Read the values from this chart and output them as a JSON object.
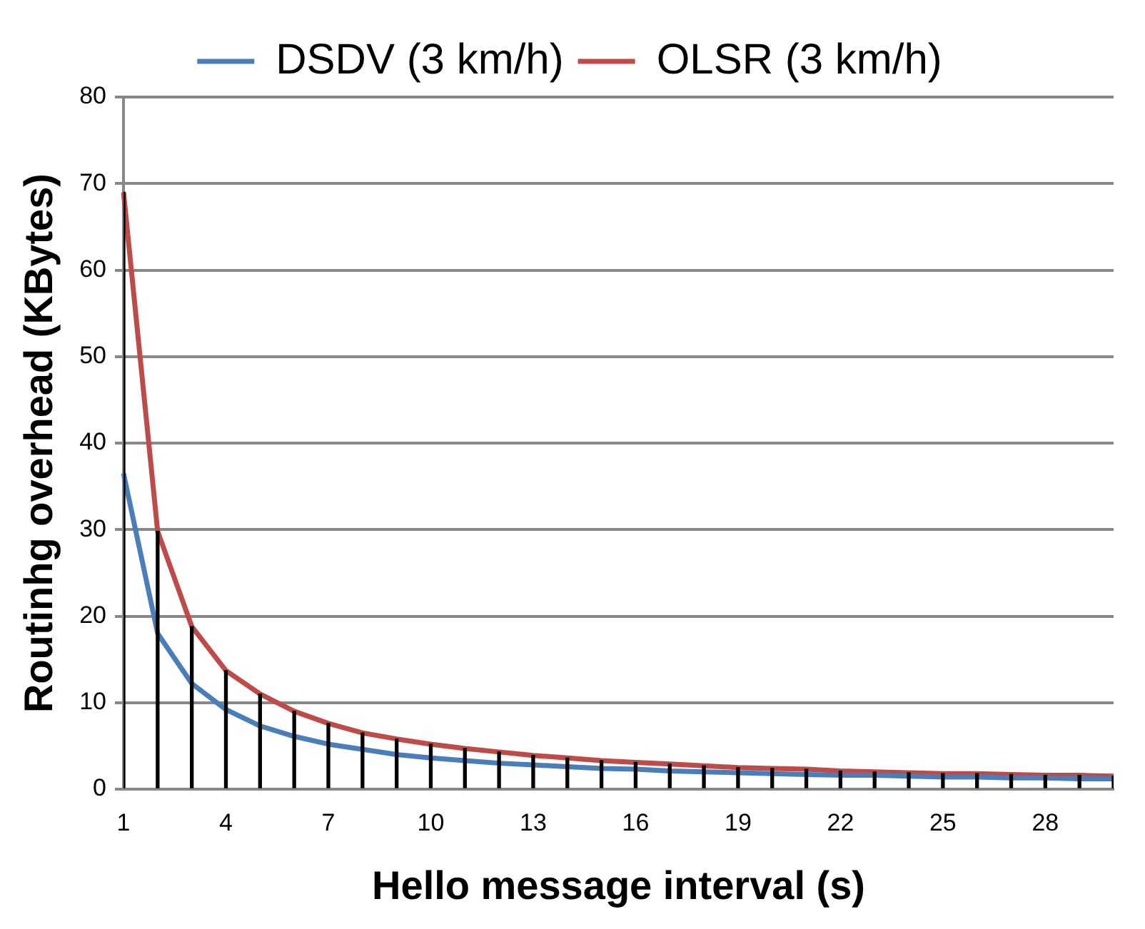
{
  "chart_data": {
    "type": "line",
    "xlabel": "Hello message interval (s)",
    "ylabel": "Routinhg overhead (KBytes)",
    "categories": [
      "1",
      null,
      null,
      "4",
      null,
      null,
      "7",
      null,
      null,
      "10",
      null,
      null,
      "13",
      null,
      null,
      "16",
      null,
      null,
      "19",
      null,
      null,
      "22",
      null,
      null,
      "25",
      null,
      null,
      "28",
      null,
      null
    ],
    "series": [
      {
        "name": "DSDV (3 km/h)",
        "color": "#4a7ebb",
        "values": [
          36.5,
          18,
          12.2,
          9.2,
          7.3,
          6.1,
          5.2,
          4.6,
          4.0,
          3.6,
          3.3,
          3.0,
          2.8,
          2.6,
          2.4,
          2.3,
          2.1,
          2.0,
          1.9,
          1.8,
          1.7,
          1.6,
          1.6,
          1.5,
          1.4,
          1.4,
          1.3,
          1.3,
          1.2,
          1.2
        ]
      },
      {
        "name": "OLSR (3 km/h)",
        "color": "#be4b48",
        "values": [
          69,
          29.8,
          18.8,
          13.7,
          11,
          9,
          7.6,
          6.5,
          5.8,
          5.2,
          4.7,
          4.3,
          3.9,
          3.6,
          3.3,
          3.1,
          2.9,
          2.7,
          2.5,
          2.4,
          2.3,
          2.1,
          2.0,
          1.9,
          1.8,
          1.8,
          1.7,
          1.6,
          1.6,
          1.5
        ]
      },
      {
        "type": "bar",
        "color": "#000000",
        "values": [
          69,
          29.8,
          18.8,
          13.7,
          11,
          9,
          7.6,
          6.5,
          5.8,
          5.2,
          4.7,
          4.3,
          3.9,
          3.6,
          3.3,
          3.1,
          2.9,
          2.7,
          2.5,
          2.4,
          2.3,
          2.1,
          2.0,
          1.9,
          1.8,
          1.8,
          1.7,
          1.6,
          1.6,
          1.5
        ]
      }
    ],
    "ylim": [
      0,
      80
    ],
    "yticks": [
      0,
      10,
      20,
      30,
      40,
      50,
      60,
      70,
      80
    ],
    "grid": "y",
    "legend": "top",
    "marker": "none",
    "line_style": "solid"
  }
}
